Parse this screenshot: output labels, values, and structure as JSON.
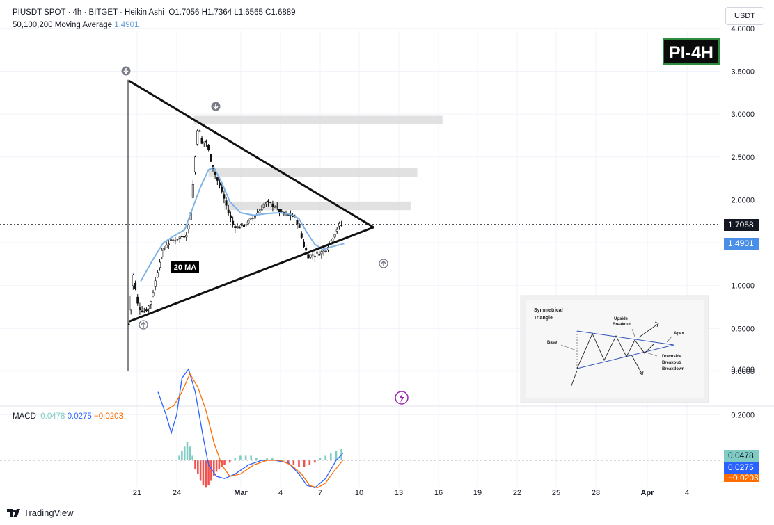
{
  "header": {
    "line1": "PIUSDT SPOT · 4h · BITGET · Heikin Ashi",
    "ohlc": "O1.7056  H1.7364  L1.6565  C1.6889",
    "ma_label": "50,100,200 Moving Average",
    "ma_value": "1.4901",
    "macd_label": "MACD",
    "macd_v1": "0.0478",
    "macd_v2": "0.0275",
    "macd_v3": "−0.0203"
  },
  "currency_button": "USDT",
  "badge": "PI-4H",
  "price_tag": "1.7058",
  "ma_tag": "1.4901",
  "macd_tags": [
    "0.0478",
    "0.0275",
    "−0.0203"
  ],
  "ma_annotation": "20 MA",
  "brand": "TradingView",
  "colors": {
    "candle": "#111111",
    "ma": "#7fb2e5",
    "macd": "#2962ff",
    "signal": "#ff6d00",
    "hist_pos": "#80cbc4",
    "hist_neg": "#ef5350",
    "tag_dark": "#131722",
    "tag_blue": "#4a8fe7",
    "tag_orange": "#ff6d00"
  },
  "icons": {
    "arrow_down": "arrow-down-icon",
    "arrow_up": "arrow-up-icon",
    "flash": "lightning-icon"
  },
  "chart_data": {
    "type": "candlestick",
    "title": "PIUSDT SPOT · 4h · BITGET · Heikin Ashi",
    "x_ticks": [
      "21",
      "24",
      "Mar",
      "4",
      "7",
      "10",
      "13",
      "16",
      "19",
      "22",
      "25",
      "28",
      "Apr",
      "4"
    ],
    "y_ticks": [
      "4.0000",
      "3.5000",
      "3.0000",
      "2.5000",
      "2.0000",
      "1.5000",
      "1.0000",
      "0.5000",
      "0.0000"
    ],
    "ylim": [
      0.0,
      4.0
    ],
    "macd_ticks": [
      "0.4000",
      "0.2000"
    ],
    "last_price": 1.7058,
    "moving_average": 1.4901,
    "price_path": [
      [
        0.0,
        0.55
      ],
      [
        0.3,
        1.15
      ],
      [
        0.7,
        0.75
      ],
      [
        1.2,
        0.7
      ],
      [
        1.6,
        0.78
      ],
      [
        2.0,
        1.05
      ],
      [
        2.4,
        1.35
      ],
      [
        2.8,
        1.48
      ],
      [
        3.2,
        1.52
      ],
      [
        3.6,
        1.55
      ],
      [
        4.0,
        1.57
      ],
      [
        4.3,
        1.6
      ],
      [
        4.6,
        1.75
      ],
      [
        4.9,
        2.3
      ],
      [
        5.2,
        2.9
      ],
      [
        5.5,
        2.65
      ],
      [
        5.8,
        2.7
      ],
      [
        6.2,
        2.45
      ],
      [
        6.6,
        2.25
      ],
      [
        7.0,
        2.1
      ],
      [
        7.4,
        1.9
      ],
      [
        7.8,
        1.72
      ],
      [
        8.2,
        1.68
      ],
      [
        8.6,
        1.7
      ],
      [
        9.0,
        1.74
      ],
      [
        9.4,
        1.8
      ],
      [
        9.8,
        1.87
      ],
      [
        10.2,
        1.95
      ],
      [
        10.6,
        1.96
      ],
      [
        11.0,
        1.93
      ],
      [
        11.4,
        1.85
      ],
      [
        11.8,
        1.82
      ],
      [
        12.2,
        1.82
      ],
      [
        12.6,
        1.78
      ],
      [
        12.9,
        1.62
      ],
      [
        13.2,
        1.45
      ],
      [
        13.5,
        1.35
      ],
      [
        13.9,
        1.36
      ],
      [
        14.3,
        1.38
      ],
      [
        14.7,
        1.4
      ],
      [
        15.1,
        1.5
      ],
      [
        15.5,
        1.62
      ],
      [
        15.8,
        1.7
      ],
      [
        16.1,
        1.71
      ]
    ],
    "ma_path": [
      [
        0.9,
        1.05
      ],
      [
        1.8,
        1.3
      ],
      [
        2.6,
        1.5
      ],
      [
        3.4,
        1.58
      ],
      [
        4.2,
        1.65
      ],
      [
        4.8,
        1.9
      ],
      [
        5.4,
        2.15
      ],
      [
        6.0,
        2.35
      ],
      [
        6.4,
        2.38
      ],
      [
        7.0,
        2.2
      ],
      [
        7.6,
        1.98
      ],
      [
        8.4,
        1.85
      ],
      [
        9.4,
        1.82
      ],
      [
        10.4,
        1.84
      ],
      [
        11.4,
        1.85
      ],
      [
        12.2,
        1.83
      ],
      [
        12.8,
        1.78
      ],
      [
        13.4,
        1.62
      ],
      [
        14.0,
        1.48
      ],
      [
        14.6,
        1.42
      ],
      [
        15.2,
        1.45
      ],
      [
        16.2,
        1.49
      ]
    ],
    "resistance_zones": [
      {
        "from_day": 4.9,
        "to_day": 23.6,
        "low": 2.88,
        "high": 2.98
      },
      {
        "from_day": 6.0,
        "to_day": 21.7,
        "low": 2.27,
        "high": 2.37
      },
      {
        "from_day": 7.2,
        "to_day": 21.2,
        "low": 1.88,
        "high": 1.98
      }
    ],
    "triangle": {
      "upper_start": [
        0.0,
        3.39
      ],
      "lower_start": [
        0.0,
        0.58
      ],
      "apex": [
        18.1,
        1.68
      ]
    },
    "macd_line": [
      [
        2.2,
        0.3
      ],
      [
        2.8,
        0.2
      ],
      [
        3.2,
        0.12
      ],
      [
        3.6,
        0.2
      ],
      [
        4.0,
        0.36
      ],
      [
        4.5,
        0.4
      ],
      [
        5.0,
        0.3
      ],
      [
        5.6,
        0.1
      ],
      [
        6.0,
        -0.02
      ],
      [
        6.6,
        -0.07
      ],
      [
        7.2,
        -0.08
      ],
      [
        8.0,
        -0.06
      ],
      [
        9.0,
        -0.02
      ],
      [
        10.0,
        0.0
      ],
      [
        11.0,
        0.0
      ],
      [
        12.0,
        -0.01
      ],
      [
        12.8,
        -0.06
      ],
      [
        13.4,
        -0.11
      ],
      [
        14.0,
        -0.12
      ],
      [
        14.8,
        -0.08
      ],
      [
        15.6,
        0.0
      ],
      [
        16.1,
        0.03
      ]
    ],
    "signal_line": [
      [
        2.8,
        0.22
      ],
      [
        3.4,
        0.24
      ],
      [
        4.0,
        0.3
      ],
      [
        4.6,
        0.38
      ],
      [
        5.2,
        0.32
      ],
      [
        5.8,
        0.22
      ],
      [
        6.4,
        0.08
      ],
      [
        7.0,
        -0.02
      ],
      [
        7.6,
        -0.07
      ],
      [
        8.4,
        -0.06
      ],
      [
        9.4,
        -0.02
      ],
      [
        10.4,
        0.0
      ],
      [
        11.4,
        0.0
      ],
      [
        12.2,
        -0.02
      ],
      [
        13.0,
        -0.06
      ],
      [
        13.6,
        -0.11
      ],
      [
        14.2,
        -0.12
      ],
      [
        14.8,
        -0.1
      ],
      [
        15.4,
        -0.05
      ],
      [
        16.1,
        0.0
      ]
    ],
    "histogram": [
      [
        3.8,
        0.02
      ],
      [
        4.0,
        0.04
      ],
      [
        4.2,
        0.06
      ],
      [
        4.4,
        0.08
      ],
      [
        4.6,
        0.06
      ],
      [
        4.8,
        0.02
      ],
      [
        5.0,
        -0.04
      ],
      [
        5.2,
        -0.06
      ],
      [
        5.4,
        -0.09
      ],
      [
        5.6,
        -0.11
      ],
      [
        5.8,
        -0.12
      ],
      [
        6.0,
        -0.11
      ],
      [
        6.2,
        -0.09
      ],
      [
        6.4,
        -0.07
      ],
      [
        6.6,
        -0.05
      ],
      [
        6.8,
        -0.04
      ],
      [
        7.0,
        -0.03
      ],
      [
        7.2,
        -0.02
      ],
      [
        7.6,
        -0.01
      ],
      [
        8.0,
        0.01
      ],
      [
        8.4,
        0.02
      ],
      [
        8.8,
        0.02
      ],
      [
        9.2,
        0.02
      ],
      [
        9.6,
        0.01
      ],
      [
        10.0,
        0.0
      ],
      [
        10.4,
        0.01
      ],
      [
        10.8,
        0.01
      ],
      [
        11.2,
        0.0
      ],
      [
        11.6,
        0.0
      ],
      [
        12.0,
        -0.01
      ],
      [
        12.4,
        -0.02
      ],
      [
        12.8,
        -0.03
      ],
      [
        13.2,
        -0.03
      ],
      [
        13.6,
        -0.02
      ],
      [
        14.0,
        -0.01
      ],
      [
        14.4,
        0.01
      ],
      [
        14.8,
        0.02
      ],
      [
        15.2,
        0.03
      ],
      [
        15.6,
        0.04
      ],
      [
        16.0,
        0.05
      ]
    ]
  },
  "inset": {
    "title_line1": "Symmetrical",
    "title_line2": "Triangle",
    "label_base": "Base",
    "label_upside": "Upside",
    "label_breakout": "Breakout",
    "label_apex": "Apex",
    "label_downside": "Downside",
    "label_breakout2": "Breakout/",
    "label_breakdown": "Breakdown"
  }
}
